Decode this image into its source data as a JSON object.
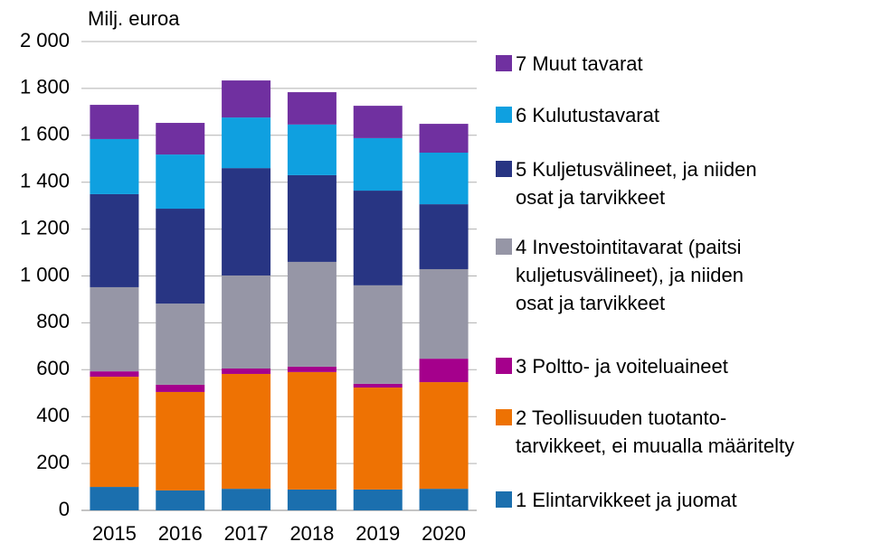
{
  "chart_data": {
    "type": "stacked_bar",
    "y_label": "Milj. euroa",
    "categories": [
      "2015",
      "2016",
      "2017",
      "2018",
      "2019",
      "2020"
    ],
    "series": [
      {
        "name": "1 Elintarvikkeet ja juomat",
        "color": "#1b6fae",
        "values": [
          100,
          85,
          92,
          89,
          89,
          92
        ]
      },
      {
        "name": "2 Teollisuuden tuotanto-\ntarvikkeet, ei muualla määritelty",
        "color": "#ee7203",
        "values": [
          470,
          420,
          490,
          501,
          435,
          455
        ]
      },
      {
        "name": "3 Poltto- ja voiteluaineet",
        "color": "#a5008c",
        "values": [
          23,
          31,
          23,
          23,
          16,
          100
        ]
      },
      {
        "name": "4 Investointitavarat (paitsi\nkuljetusvälineet), ja niiden\nosat ja tarvikkeet",
        "color": "#9696a6",
        "values": [
          359,
          346,
          397,
          447,
          420,
          382
        ]
      },
      {
        "name": "5 Kuljetusvälineet, ja niiden\nosat ja tarvikkeet",
        "color": "#283583",
        "values": [
          397,
          405,
          458,
          370,
          404,
          277
        ]
      },
      {
        "name": "6 Kulutustavarat",
        "color": "#0fa0e0",
        "values": [
          235,
          231,
          216,
          216,
          224,
          220
        ]
      },
      {
        "name": "7 Muut tavarat",
        "color": "#7030a0",
        "values": [
          146,
          135,
          158,
          138,
          138,
          123
        ]
      }
    ],
    "ylim": [
      0,
      2000
    ],
    "yticks": [
      0,
      200,
      400,
      600,
      800,
      {
        "value": 1000,
        "label": "1 000"
      },
      {
        "value": 1200,
        "label": "1 200"
      },
      {
        "value": 1400,
        "label": "1 400"
      },
      {
        "value": 1600,
        "label": "1 600"
      },
      {
        "value": 1800,
        "label": "1 800"
      },
      {
        "value": 2000,
        "label": "2 000"
      }
    ],
    "grid": true,
    "legend": "right"
  }
}
